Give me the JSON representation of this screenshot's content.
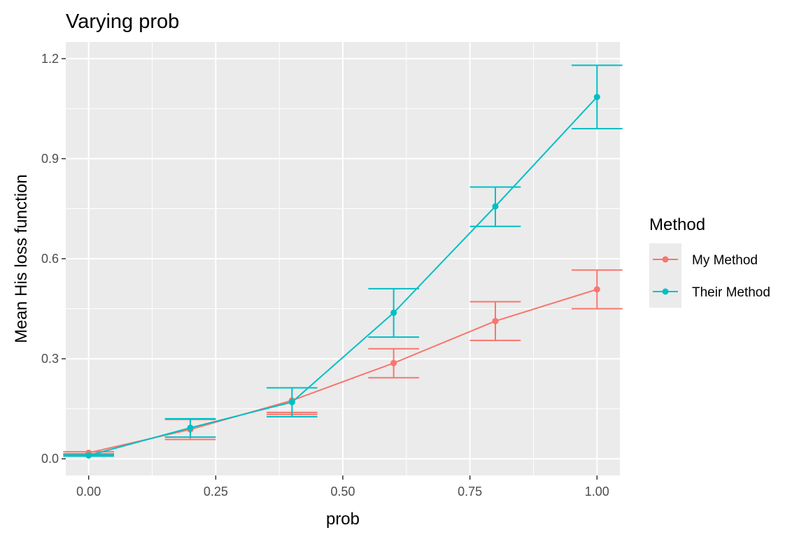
{
  "chart_data": {
    "type": "line",
    "title": "Varying prob",
    "xlabel": "prob",
    "ylabel": "Mean His loss function",
    "xlim": [
      -0.045,
      1.045
    ],
    "ylim": [
      -0.05,
      1.25
    ],
    "x_ticks": [
      0.0,
      0.25,
      0.5,
      0.75,
      1.0
    ],
    "x_tick_labels": [
      "0.00",
      "0.25",
      "0.50",
      "0.75",
      "1.00"
    ],
    "y_ticks": [
      0.0,
      0.3,
      0.6,
      0.9,
      1.2
    ],
    "y_tick_labels": [
      "0.0",
      "0.3",
      "0.6",
      "0.9",
      "1.2"
    ],
    "grid": true,
    "legend": {
      "title": "Method",
      "position": "right"
    },
    "x": [
      0.0,
      0.2,
      0.4,
      0.6,
      0.8,
      1.0
    ],
    "series": [
      {
        "name": "My Method",
        "color": "#F8766D",
        "values": [
          0.018,
          0.088,
          0.175,
          0.287,
          0.413,
          0.508
        ],
        "error_low": [
          0.015,
          0.058,
          0.133,
          0.243,
          0.355,
          0.45
        ],
        "error_high": [
          0.021,
          0.118,
          0.139,
          0.33,
          0.471,
          0.566
        ],
        "errorbar_width": 0.1
      },
      {
        "name": "Their Method",
        "color": "#00BFC4",
        "values": [
          0.01,
          0.093,
          0.17,
          0.438,
          0.757,
          1.085
        ],
        "error_low": [
          0.008,
          0.065,
          0.126,
          0.365,
          0.697,
          0.99
        ],
        "error_high": [
          0.012,
          0.12,
          0.213,
          0.51,
          0.815,
          1.18
        ],
        "errorbar_width": 0.1
      }
    ]
  }
}
